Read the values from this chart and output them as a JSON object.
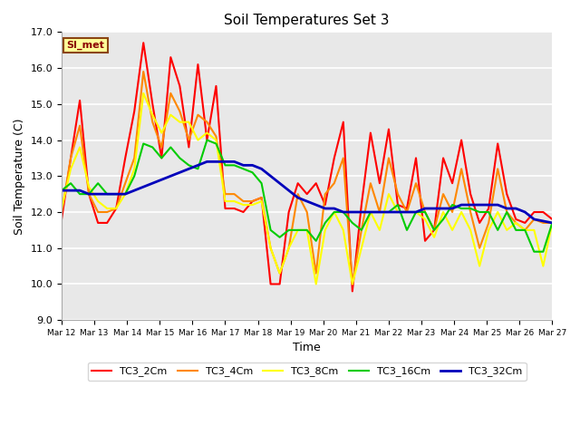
{
  "title": "Soil Temperatures Set 3",
  "xlabel": "Time",
  "ylabel": "Soil Temperature (C)",
  "ylim": [
    9.0,
    17.0
  ],
  "yticks": [
    9.0,
    10.0,
    11.0,
    12.0,
    13.0,
    14.0,
    15.0,
    16.0,
    17.0
  ],
  "fig_bg": "#ffffff",
  "plot_bg": "#e8e8e8",
  "annotation_text": "SI_met",
  "annotation_box_color": "#ffff99",
  "annotation_border_color": "#8B4513",
  "annotation_text_color": "#8B0000",
  "series_colors": [
    "#ff0000",
    "#ff8800",
    "#ffff00",
    "#00cc00",
    "#0000bb"
  ],
  "series_names": [
    "TC3_2Cm",
    "TC3_4Cm",
    "TC3_8Cm",
    "TC3_16Cm",
    "TC3_32Cm"
  ],
  "series_lw": [
    1.5,
    1.5,
    1.5,
    1.5,
    2.0
  ],
  "x_labels": [
    "Mar 12",
    "Mar 13",
    "Mar 14",
    "Mar 15",
    "Mar 16",
    "Mar 17",
    "Mar 18",
    "Mar 19",
    "Mar 20",
    "Mar 21",
    "Mar 22",
    "Mar 23",
    "Mar 24",
    "Mar 25",
    "Mar 26",
    "Mar 27"
  ],
  "TC3_2Cm": [
    11.8,
    13.5,
    15.1,
    12.5,
    11.7,
    11.7,
    12.1,
    13.5,
    14.8,
    16.7,
    15.0,
    13.5,
    16.3,
    15.5,
    13.8,
    16.1,
    14.0,
    15.5,
    12.1,
    12.1,
    12.0,
    12.3,
    12.4,
    10.0,
    10.0,
    12.0,
    12.8,
    12.5,
    12.8,
    12.2,
    13.5,
    14.5,
    9.8,
    12.2,
    14.2,
    12.8,
    14.3,
    12.2,
    12.1,
    13.5,
    11.2,
    11.5,
    13.5,
    12.8,
    14.0,
    12.5,
    11.7,
    12.1,
    13.9,
    12.5,
    11.8,
    11.7,
    12.0,
    12.0,
    11.8
  ],
  "TC3_4Cm": [
    12.0,
    13.5,
    14.4,
    12.5,
    12.0,
    12.0,
    12.1,
    12.8,
    13.5,
    15.9,
    14.5,
    13.8,
    15.3,
    14.8,
    14.0,
    14.7,
    14.5,
    14.1,
    12.5,
    12.5,
    12.3,
    12.3,
    12.4,
    11.0,
    10.3,
    11.0,
    12.5,
    12.0,
    10.3,
    12.5,
    12.8,
    13.5,
    10.0,
    11.5,
    12.8,
    12.0,
    13.5,
    12.5,
    12.0,
    12.8,
    12.0,
    11.5,
    12.5,
    12.0,
    13.2,
    12.0,
    11.0,
    11.7,
    13.2,
    12.0,
    11.7,
    11.5,
    11.8,
    11.7,
    11.7
  ],
  "TC3_8Cm": [
    12.1,
    13.2,
    13.8,
    12.7,
    12.3,
    12.1,
    12.1,
    12.5,
    13.2,
    15.3,
    14.7,
    14.2,
    14.7,
    14.5,
    14.5,
    14.0,
    14.2,
    14.0,
    12.3,
    12.3,
    12.2,
    12.2,
    12.3,
    11.0,
    10.3,
    11.0,
    11.5,
    11.5,
    10.0,
    11.5,
    12.0,
    11.5,
    10.0,
    11.0,
    12.0,
    11.5,
    12.5,
    12.0,
    12.0,
    12.0,
    11.8,
    11.3,
    12.0,
    11.5,
    12.0,
    11.5,
    10.5,
    11.5,
    12.0,
    11.5,
    11.7,
    11.5,
    11.5,
    10.5,
    11.7
  ],
  "TC3_16Cm": [
    12.6,
    12.8,
    12.5,
    12.5,
    12.8,
    12.5,
    12.5,
    12.5,
    13.0,
    13.9,
    13.8,
    13.5,
    13.8,
    13.5,
    13.3,
    13.2,
    14.0,
    13.9,
    13.3,
    13.3,
    13.2,
    13.1,
    12.8,
    11.5,
    11.3,
    11.5,
    11.5,
    11.5,
    11.2,
    11.7,
    12.0,
    12.0,
    11.7,
    11.5,
    12.0,
    12.0,
    12.0,
    12.2,
    11.5,
    12.0,
    12.0,
    11.5,
    11.8,
    12.2,
    12.1,
    12.1,
    12.0,
    12.0,
    11.5,
    12.0,
    11.5,
    11.5,
    10.9,
    10.9,
    11.7
  ],
  "TC3_32Cm": [
    12.6,
    12.6,
    12.6,
    12.5,
    12.5,
    12.5,
    12.5,
    12.5,
    12.6,
    12.7,
    12.8,
    12.9,
    13.0,
    13.1,
    13.2,
    13.3,
    13.4,
    13.4,
    13.4,
    13.4,
    13.3,
    13.3,
    13.2,
    13.0,
    12.8,
    12.6,
    12.4,
    12.3,
    12.2,
    12.1,
    12.1,
    12.0,
    12.0,
    12.0,
    12.0,
    12.0,
    12.0,
    12.0,
    12.0,
    12.0,
    12.1,
    12.1,
    12.1,
    12.1,
    12.2,
    12.2,
    12.2,
    12.2,
    12.2,
    12.1,
    12.1,
    12.0,
    11.8,
    11.75,
    11.7
  ]
}
